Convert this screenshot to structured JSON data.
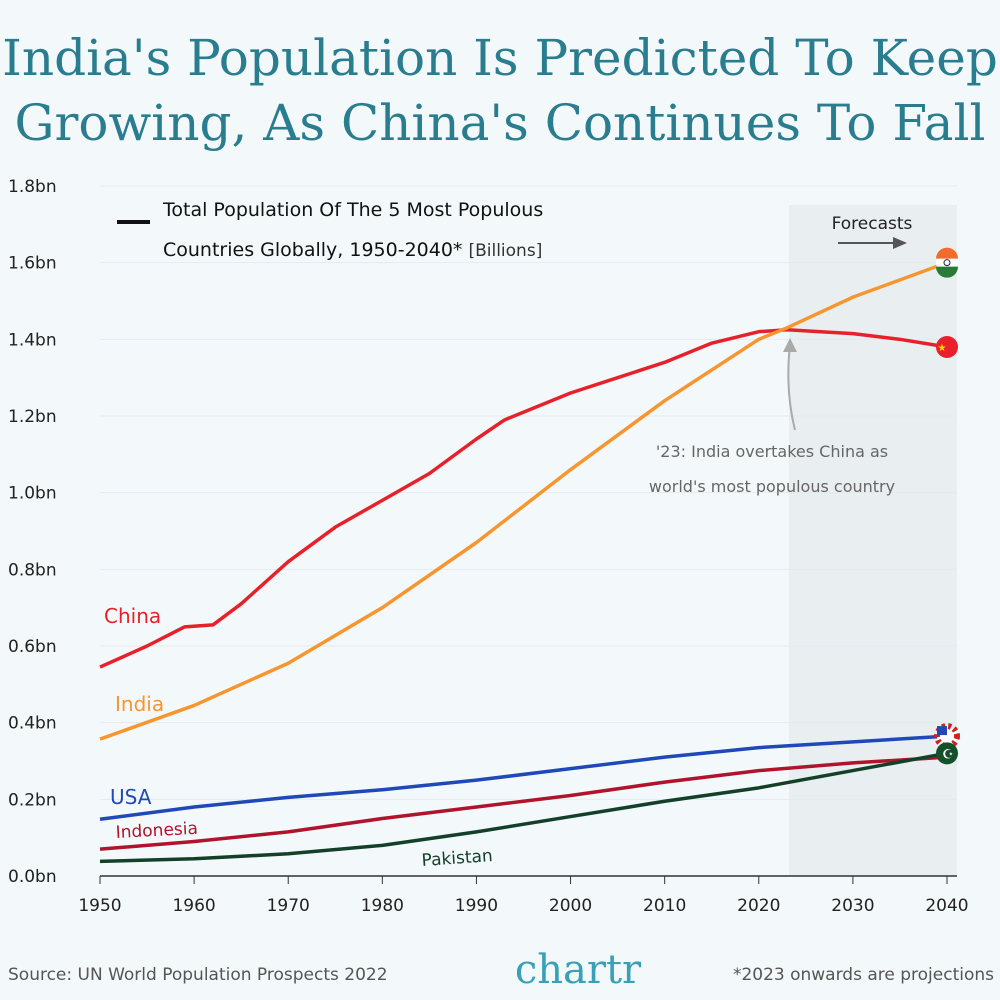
{
  "title_lines": [
    "India's Population Is Predicted To Keep",
    "Growing, As China's Continues To Fall"
  ],
  "legend": {
    "line1": "Total Population Of The 5 Most Populous",
    "line2": "Countries Globally, 1950-2040*",
    "unit": "[Billions]"
  },
  "forecast_label": "Forecasts",
  "annotation": [
    "'23: India overtakes China as",
    "world's most populous country"
  ],
  "footer": {
    "source": "Source: UN World Population Prospects 2022",
    "brand": "chartr",
    "note": "*2023 onwards are projections"
  },
  "chart_data": {
    "type": "line",
    "xlim": [
      1950,
      2040
    ],
    "ylim": [
      0,
      1.8
    ],
    "x_ticks": [
      "1950",
      "1960",
      "1970",
      "1980",
      "1990",
      "2000",
      "2010",
      "2020",
      "2030",
      "2040"
    ],
    "y_ticks": [
      "0.0bn",
      "0.2bn",
      "0.4bn",
      "0.6bn",
      "0.8bn",
      "1.0bn",
      "1.2bn",
      "1.4bn",
      "1.6bn",
      "1.8bn"
    ],
    "grid": "horizontal",
    "forecast_start": 2023,
    "series": [
      {
        "name": "China",
        "color": "#e8202a",
        "flag": "china-flag",
        "points": [
          [
            1950,
            0.545
          ],
          [
            1955,
            0.6
          ],
          [
            1959,
            0.65
          ],
          [
            1962,
            0.655
          ],
          [
            1965,
            0.71
          ],
          [
            1970,
            0.82
          ],
          [
            1975,
            0.91
          ],
          [
            1980,
            0.98
          ],
          [
            1985,
            1.05
          ],
          [
            1990,
            1.14
          ],
          [
            1993,
            1.19
          ],
          [
            2000,
            1.26
          ],
          [
            2005,
            1.3
          ],
          [
            2010,
            1.34
          ],
          [
            2015,
            1.39
          ],
          [
            2020,
            1.42
          ],
          [
            2023,
            1.425
          ],
          [
            2030,
            1.415
          ],
          [
            2035,
            1.4
          ],
          [
            2040,
            1.38
          ]
        ]
      },
      {
        "name": "India",
        "color": "#f7952f",
        "flag": "india-flag",
        "points": [
          [
            1950,
            0.357
          ],
          [
            1960,
            0.445
          ],
          [
            1970,
            0.555
          ],
          [
            1980,
            0.7
          ],
          [
            1990,
            0.87
          ],
          [
            2000,
            1.06
          ],
          [
            2010,
            1.24
          ],
          [
            2020,
            1.4
          ],
          [
            2023,
            1.43
          ],
          [
            2030,
            1.51
          ],
          [
            2040,
            1.6
          ]
        ]
      },
      {
        "name": "USA",
        "color": "#1f48b8",
        "flag": "usa-flag",
        "points": [
          [
            1950,
            0.148
          ],
          [
            1960,
            0.18
          ],
          [
            1970,
            0.205
          ],
          [
            1980,
            0.225
          ],
          [
            1990,
            0.25
          ],
          [
            2000,
            0.28
          ],
          [
            2010,
            0.31
          ],
          [
            2020,
            0.335
          ],
          [
            2030,
            0.35
          ],
          [
            2040,
            0.365
          ]
        ]
      },
      {
        "name": "Indonesia",
        "color": "#b0142c",
        "flag": "",
        "points": [
          [
            1950,
            0.07
          ],
          [
            1960,
            0.09
          ],
          [
            1970,
            0.115
          ],
          [
            1980,
            0.15
          ],
          [
            1990,
            0.18
          ],
          [
            2000,
            0.21
          ],
          [
            2010,
            0.245
          ],
          [
            2020,
            0.275
          ],
          [
            2030,
            0.295
          ],
          [
            2040,
            0.31
          ]
        ]
      },
      {
        "name": "Pakistan",
        "color": "#14402a",
        "flag": "pakistan-flag",
        "points": [
          [
            1950,
            0.038
          ],
          [
            1960,
            0.045
          ],
          [
            1970,
            0.058
          ],
          [
            1980,
            0.08
          ],
          [
            1990,
            0.115
          ],
          [
            2000,
            0.155
          ],
          [
            2010,
            0.195
          ],
          [
            2020,
            0.23
          ],
          [
            2030,
            0.275
          ],
          [
            2040,
            0.32
          ]
        ]
      }
    ]
  }
}
